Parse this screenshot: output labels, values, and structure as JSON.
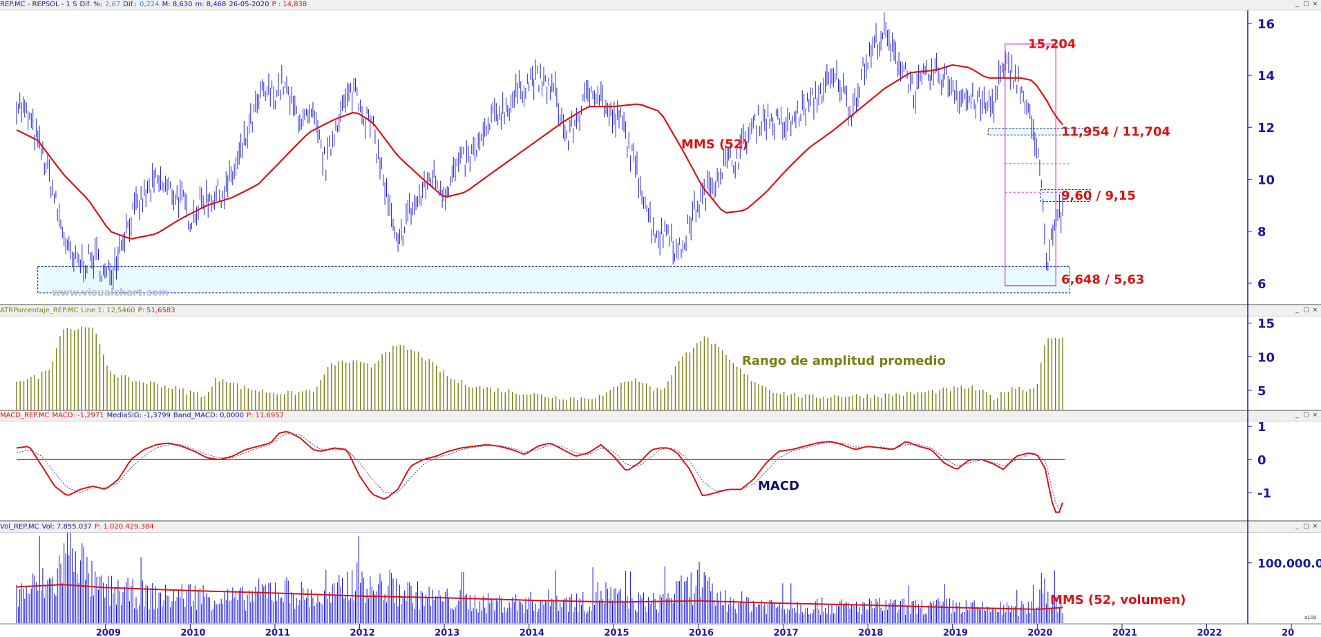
{
  "colors": {
    "price": "#2323d8",
    "ma": "#e01010",
    "ann": "#e01010",
    "pink": "#e030d0",
    "atr": "#7d7d10",
    "macd_sig": "#3a3ae0",
    "vol": "#1010e0",
    "axis": "#1a1aa0",
    "zone": "#e8fbfd"
  },
  "panels": {
    "price": {
      "h_symbol": "REP.MC - REPSOL - 1 S",
      "h_dif_pct_label": "Dif. %:",
      "h_dif_pct": "2,67",
      "h_dif_label": "Dif.:",
      "h_dif": "0,224",
      "h_max": "M: 8,630",
      "h_min": "m: 8,468",
      "h_date": "26-05-2020",
      "h_p": "P : 14,838"
    },
    "atr": {
      "h_name": "ATRPorcentaje_REP.MC",
      "h_line": "Line 1: 12,5460",
      "h_p": "P: 51,6583"
    },
    "macd": {
      "h_name": "MACD_REP.MC",
      "h_macd": "MACD: -1,2971",
      "h_sig": "MediaSIG: -1,3799",
      "h_band": "Band_MACD: 0,0000",
      "h_p": "P: 11,6957"
    },
    "vol": {
      "h_name": "Vol_REP.MC",
      "h_vol": "Vol: 7.855.037",
      "h_p": "P: 1.020.429.384"
    }
  },
  "annotations": {
    "top": "15,204",
    "res": "11,954 / 11,704",
    "mid": "9,60 / 9,15",
    "sup": "6,648 / 5,63",
    "mms": "MMS (52)",
    "atr": "Rango de amplitud promedio",
    "macd": "MACD",
    "vol": "MMS (52, volumen)",
    "watermark": "www.visualchart.com",
    "vol_scale": "x100"
  },
  "window_buttons": [
    "_",
    "□",
    "×"
  ],
  "chart_data": [
    {
      "type": "line",
      "title": "REP.MC - REPSOL - 1 S",
      "x_unit": "year",
      "ylim": [
        5.2,
        16.5
      ],
      "yticks": [
        6,
        8,
        10,
        12,
        14,
        16
      ],
      "xticks": [
        "2009",
        "2010",
        "2011",
        "2012",
        "2013",
        "2014",
        "2015",
        "2016",
        "2017",
        "2018",
        "2019",
        "2020",
        "2021",
        "2022",
        "20"
      ],
      "xtick_positions": [
        2009,
        2010,
        2011,
        2012,
        2013,
        2014,
        2015,
        2016,
        2017,
        2018,
        2019,
        2020,
        2021,
        2022,
        2023
      ],
      "series": [
        {
          "name": "REP.MC",
          "kind": "ohlc_approx",
          "x": [
            2007.95,
            2008.1,
            2008.25,
            2008.35,
            2008.45,
            2008.6,
            2008.75,
            2008.9,
            2009.0,
            2009.1,
            2009.2,
            2009.3,
            2009.45,
            2009.6,
            2009.75,
            2009.9,
            2010.0,
            2010.15,
            2010.3,
            2010.4,
            2010.55,
            2010.7,
            2010.85,
            2011.0,
            2011.1,
            2011.2,
            2011.35,
            2011.45,
            2011.6,
            2011.75,
            2011.85,
            2011.95,
            2012.05,
            2012.15,
            2012.25,
            2012.35,
            2012.45,
            2012.55,
            2012.7,
            2012.85,
            2013.0,
            2013.15,
            2013.3,
            2013.45,
            2013.6,
            2013.75,
            2013.9,
            2014.05,
            2014.2,
            2014.3,
            2014.45,
            2014.6,
            2014.75,
            2014.85,
            2014.95,
            2015.1,
            2015.2,
            2015.35,
            2015.45,
            2015.55,
            2015.65,
            2015.75,
            2015.85,
            2015.95,
            2016.05,
            2016.15,
            2016.3,
            2016.45,
            2016.6,
            2016.75,
            2016.9,
            2017.05,
            2017.2,
            2017.35,
            2017.5,
            2017.65,
            2017.8,
            2017.95,
            2018.1,
            2018.2,
            2018.3,
            2018.45,
            2018.55,
            2018.65,
            2018.8,
            2018.95,
            2019.1,
            2019.25,
            2019.4,
            2019.5,
            2019.55,
            2019.65,
            2019.75,
            2019.85,
            2019.95,
            2020.0,
            2020.05,
            2020.08,
            2020.12,
            2020.15,
            2020.2,
            2020.25,
            2020.3
          ],
          "values": [
            13.0,
            12.3,
            11.0,
            10.0,
            8.5,
            6.8,
            6.8,
            7.0,
            6.2,
            6.7,
            7.8,
            8.5,
            9.3,
            9.9,
            9.6,
            9.2,
            8.5,
            9.2,
            9.4,
            9.5,
            10.5,
            12.0,
            13.3,
            13.3,
            13.7,
            12.8,
            12.2,
            12.3,
            10.5,
            12.5,
            13.0,
            13.6,
            12.5,
            12.0,
            10.5,
            8.8,
            7.2,
            8.6,
            9.2,
            10.2,
            9.5,
            10.5,
            10.8,
            11.5,
            12.5,
            12.8,
            13.5,
            13.9,
            13.6,
            13.4,
            11.5,
            12.6,
            13.6,
            13.2,
            12.4,
            12.2,
            11.0,
            9.5,
            8.2,
            7.8,
            8.2,
            7.0,
            7.8,
            8.8,
            9.3,
            9.8,
            10.6,
            10.8,
            11.8,
            12.4,
            12.2,
            12.0,
            12.6,
            13.0,
            13.6,
            13.9,
            12.6,
            14.2,
            15.3,
            15.6,
            14.8,
            14.2,
            13.3,
            13.8,
            14.1,
            13.8,
            13.2,
            13.0,
            12.8,
            13.0,
            13.9,
            14.3,
            14.0,
            13.0,
            11.8,
            11.5,
            9.6,
            8.0,
            6.0,
            7.5,
            8.2,
            8.6,
            8.6
          ]
        },
        {
          "name": "MMS (52)",
          "x": [
            2007.95,
            2008.2,
            2008.5,
            2008.8,
            2009.05,
            2009.3,
            2009.6,
            2009.9,
            2010.2,
            2010.5,
            2010.8,
            2011.1,
            2011.4,
            2011.7,
            2011.95,
            2012.15,
            2012.45,
            2012.75,
            2013.0,
            2013.25,
            2013.5,
            2013.8,
            2014.1,
            2014.4,
            2014.7,
            2015.0,
            2015.3,
            2015.55,
            2015.8,
            2016.05,
            2016.3,
            2016.55,
            2016.8,
            2017.05,
            2017.3,
            2017.6,
            2017.9,
            2018.2,
            2018.5,
            2018.8,
            2019.0,
            2019.2,
            2019.4,
            2019.6,
            2019.8,
            2019.95,
            2020.1,
            2020.2,
            2020.3
          ],
          "values": [
            11.9,
            11.5,
            10.2,
            9.2,
            8.0,
            7.7,
            7.9,
            8.5,
            9.0,
            9.3,
            9.8,
            10.8,
            11.8,
            12.3,
            12.6,
            12.2,
            10.9,
            10.0,
            9.3,
            9.5,
            10.1,
            10.8,
            11.5,
            12.2,
            12.8,
            12.8,
            12.9,
            12.6,
            11.2,
            9.7,
            8.7,
            8.8,
            9.5,
            10.4,
            11.2,
            11.9,
            12.7,
            13.5,
            14.1,
            14.2,
            14.4,
            14.3,
            13.9,
            13.9,
            13.9,
            13.8,
            13.1,
            12.5,
            12.1
          ]
        }
      ],
      "levels": [
        15.204,
        11.954,
        11.704,
        10.6,
        9.6,
        9.5,
        9.15,
        6.648,
        5.63
      ]
    },
    {
      "type": "bar",
      "title": "ATRPorcentaje_REP.MC",
      "ylim": [
        2,
        16
      ],
      "yticks": [
        5,
        10,
        15
      ],
      "x": [
        2007.95,
        2008.2,
        2008.35,
        2008.5,
        2008.65,
        2008.8,
        2008.9,
        2009.0,
        2009.1,
        2009.3,
        2009.6,
        2009.9,
        2010.2,
        2010.3,
        2010.4,
        2010.6,
        2010.9,
        2011.2,
        2011.5,
        2011.6,
        2011.7,
        2011.9,
        2012.0,
        2012.15,
        2012.3,
        2012.5,
        2012.7,
        2012.9,
        2013.1,
        2013.4,
        2013.7,
        2014.0,
        2014.3,
        2014.6,
        2014.9,
        2015.1,
        2015.3,
        2015.5,
        2015.6,
        2015.75,
        2015.9,
        2016.0,
        2016.1,
        2016.25,
        2016.4,
        2016.6,
        2016.9,
        2017.3,
        2017.7,
        2018.1,
        2018.5,
        2018.9,
        2019.2,
        2019.4,
        2019.5,
        2019.7,
        2019.85,
        2019.95,
        2020.0,
        2020.05,
        2020.1,
        2020.2,
        2020.3
      ],
      "values": [
        6.5,
        7.0,
        8.5,
        14.5,
        14.0,
        14.8,
        13.0,
        9.0,
        7.5,
        6.5,
        6.0,
        5.0,
        4.2,
        6.5,
        6.8,
        5.5,
        4.8,
        4.5,
        5.2,
        8.0,
        9.0,
        9.3,
        9.0,
        8.5,
        11.0,
        11.5,
        10.5,
        8.5,
        6.5,
        5.5,
        5.0,
        4.5,
        4.0,
        3.8,
        4.2,
        6.5,
        6.5,
        5.0,
        5.5,
        9.0,
        11.0,
        12.5,
        12.8,
        11.0,
        9.0,
        6.8,
        4.8,
        4.0,
        4.2,
        4.2,
        4.5,
        5.0,
        5.5,
        4.5,
        3.8,
        5.5,
        5.2,
        5.2,
        6.0,
        10.0,
        12.5,
        12.5,
        13.0
      ],
      "series": [
        {
          "name": "Line 1"
        }
      ]
    },
    {
      "type": "line",
      "title": "MACD_REP.MC",
      "ylim": [
        -1.85,
        1.15
      ],
      "yticks": [
        -1,
        0,
        1
      ],
      "x": [
        2007.95,
        2008.1,
        2008.25,
        2008.4,
        2008.55,
        2008.7,
        2008.85,
        2009.0,
        2009.15,
        2009.3,
        2009.45,
        2009.6,
        2009.75,
        2009.9,
        2010.05,
        2010.2,
        2010.35,
        2010.5,
        2010.65,
        2010.8,
        2010.95,
        2011.05,
        2011.15,
        2011.3,
        2011.45,
        2011.55,
        2011.7,
        2011.85,
        2012.0,
        2012.15,
        2012.3,
        2012.45,
        2012.6,
        2012.75,
        2012.9,
        2013.05,
        2013.2,
        2013.35,
        2013.5,
        2013.65,
        2013.8,
        2013.95,
        2014.1,
        2014.25,
        2014.4,
        2014.55,
        2014.7,
        2014.85,
        2015.0,
        2015.15,
        2015.3,
        2015.45,
        2015.55,
        2015.65,
        2015.75,
        2015.9,
        2016.05,
        2016.2,
        2016.35,
        2016.5,
        2016.65,
        2016.8,
        2016.95,
        2017.1,
        2017.25,
        2017.4,
        2017.55,
        2017.7,
        2017.85,
        2018.0,
        2018.15,
        2018.3,
        2018.45,
        2018.6,
        2018.75,
        2018.9,
        2019.05,
        2019.2,
        2019.35,
        2019.5,
        2019.6,
        2019.75,
        2019.9,
        2020.0,
        2020.1,
        2020.15,
        2020.2,
        2020.25,
        2020.3
      ],
      "series": [
        {
          "name": "MACD",
          "values": [
            0.35,
            0.4,
            -0.2,
            -0.8,
            -1.1,
            -0.9,
            -0.8,
            -0.9,
            -0.6,
            0.0,
            0.3,
            0.45,
            0.5,
            0.4,
            0.25,
            0.05,
            0.0,
            0.1,
            0.3,
            0.4,
            0.5,
            0.8,
            0.85,
            0.65,
            0.3,
            0.25,
            0.35,
            0.3,
            -0.5,
            -1.05,
            -1.2,
            -0.9,
            -0.2,
            0.0,
            0.1,
            0.25,
            0.35,
            0.4,
            0.45,
            0.4,
            0.3,
            0.15,
            0.4,
            0.5,
            0.3,
            0.1,
            0.2,
            0.45,
            0.1,
            -0.35,
            -0.1,
            0.3,
            0.35,
            0.35,
            0.2,
            -0.3,
            -1.1,
            -1.0,
            -0.9,
            -0.9,
            -0.6,
            -0.1,
            0.25,
            0.3,
            0.4,
            0.5,
            0.55,
            0.45,
            0.3,
            0.4,
            0.35,
            0.3,
            0.55,
            0.4,
            0.3,
            -0.1,
            -0.3,
            0.0,
            0.0,
            -0.15,
            -0.3,
            0.1,
            0.2,
            0.15,
            -0.3,
            -1.0,
            -1.55,
            -1.65,
            -1.3
          ]
        },
        {
          "name": "MediaSIG",
          "values": [
            0.2,
            0.3,
            0.1,
            -0.4,
            -0.85,
            -1.0,
            -0.85,
            -0.85,
            -0.7,
            -0.25,
            0.1,
            0.35,
            0.45,
            0.45,
            0.3,
            0.15,
            0.05,
            0.05,
            0.2,
            0.35,
            0.45,
            0.65,
            0.8,
            0.75,
            0.45,
            0.3,
            0.3,
            0.3,
            -0.1,
            -0.6,
            -1.0,
            -1.0,
            -0.55,
            -0.15,
            0.05,
            0.15,
            0.3,
            0.37,
            0.42,
            0.42,
            0.35,
            0.22,
            0.3,
            0.45,
            0.38,
            0.2,
            0.15,
            0.35,
            0.25,
            -0.15,
            -0.2,
            0.1,
            0.3,
            0.35,
            0.28,
            -0.05,
            -0.65,
            -0.95,
            -0.9,
            -0.9,
            -0.75,
            -0.35,
            0.05,
            0.25,
            0.35,
            0.45,
            0.52,
            0.5,
            0.38,
            0.38,
            0.38,
            0.32,
            0.45,
            0.45,
            0.35,
            0.05,
            -0.2,
            -0.1,
            0.0,
            -0.1,
            -0.2,
            0.0,
            0.15,
            0.15,
            -0.05,
            -0.6,
            -1.2,
            -1.5,
            -1.38
          ]
        }
      ],
      "reference_line": 0
    },
    {
      "type": "bar",
      "title": "Vol_REP.MC",
      "yticks_labels": [
        "100.000.0"
      ],
      "ytick_values": [
        1000000
      ],
      "ylim": [
        0,
        1500000
      ],
      "x": [
        2007.95,
        2008.2,
        2008.4,
        2008.55,
        2008.65,
        2008.75,
        2008.9,
        2009.1,
        2009.4,
        2009.7,
        2010.0,
        2010.3,
        2010.6,
        2011.0,
        2011.3,
        2011.6,
        2011.9,
        2012.0,
        2012.1,
        2012.3,
        2012.5,
        2012.8,
        2013.1,
        2013.5,
        2013.9,
        2014.3,
        2014.7,
        2014.85,
        2015.1,
        2015.5,
        2015.7,
        2015.9,
        2016.0,
        2016.1,
        2016.3,
        2016.6,
        2017.0,
        2017.4,
        2017.8,
        2018.2,
        2018.6,
        2019.0,
        2019.4,
        2019.8,
        2020.0,
        2020.05,
        2020.1,
        2020.2,
        2020.3
      ],
      "values": [
        500000,
        650000,
        700000,
        1300000,
        1450000,
        900000,
        600000,
        550000,
        500000,
        450000,
        500000,
        450000,
        420000,
        600000,
        500000,
        400000,
        700000,
        1050000,
        550000,
        650000,
        550000,
        450000,
        400000,
        350000,
        350000,
        400000,
        350000,
        550000,
        400000,
        350000,
        500000,
        600000,
        800000,
        550000,
        400000,
        350000,
        300000,
        300000,
        280000,
        300000,
        280000,
        300000,
        250000,
        250000,
        300000,
        900000,
        500000,
        400000,
        350000
      ],
      "series": [
        {
          "name": "Vol"
        },
        {
          "name": "MMS (52, volumen)",
          "x": [
            2007.95,
            2008.5,
            2009.0,
            2010.0,
            2011.0,
            2012.0,
            2013.0,
            2014.0,
            2015.0,
            2016.0,
            2017.0,
            2018.0,
            2019.0,
            2020.0,
            2020.3
          ],
          "values": [
            600000,
            640000,
            590000,
            540000,
            500000,
            450000,
            420000,
            380000,
            350000,
            370000,
            330000,
            300000,
            260000,
            230000,
            260000
          ]
        }
      ]
    }
  ]
}
